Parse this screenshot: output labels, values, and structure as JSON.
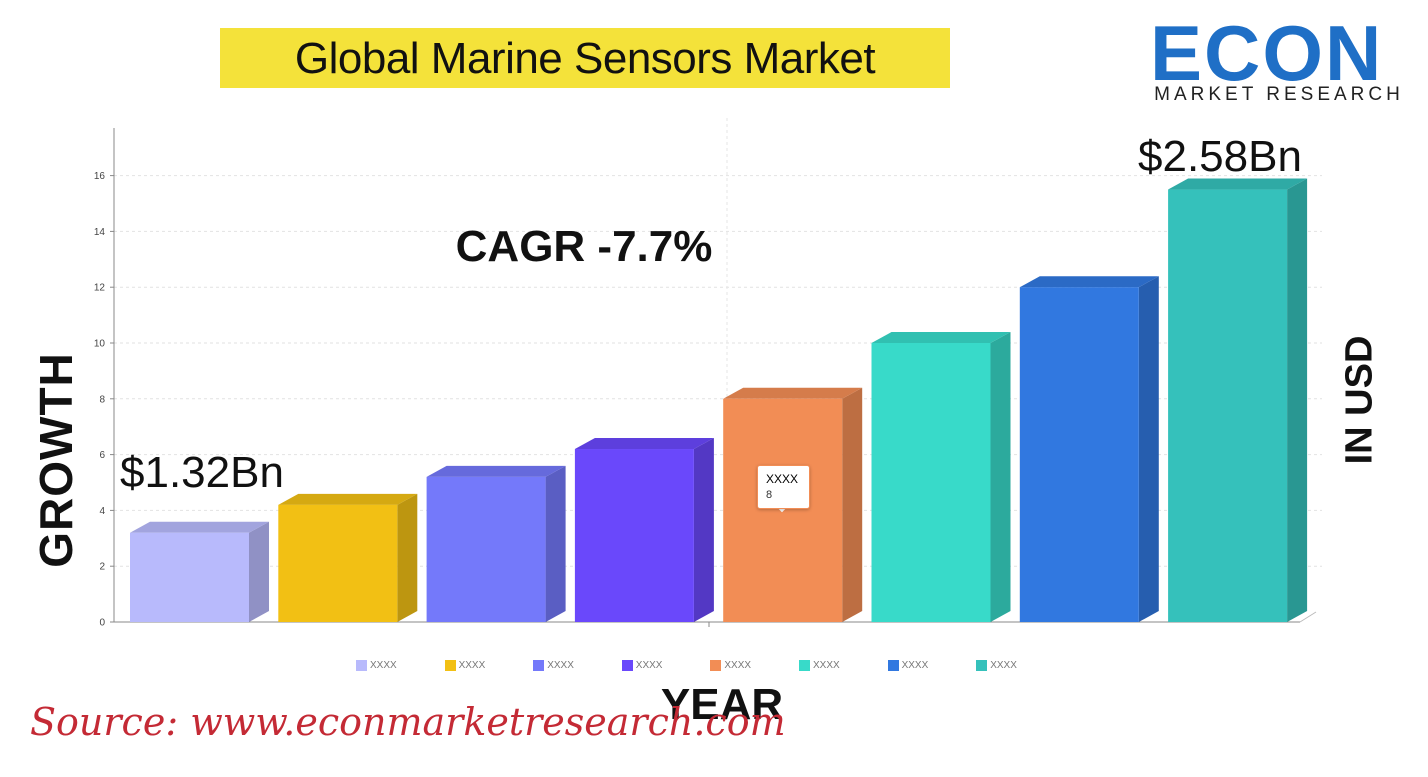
{
  "header": {
    "title": "Global Marine Sensors Market"
  },
  "logo": {
    "word": "ECON",
    "subtitle": "MARKET RESEARCH",
    "brand_color": "#1f6fc6"
  },
  "footer": {
    "source": "Source:  www.econmarketresearch.com"
  },
  "chart_data": {
    "type": "bar",
    "ylabel": "GROWTH",
    "ylabel_right": "IN USD",
    "xlabel": "YEAR",
    "ylim": [
      0,
      17
    ],
    "yticks": [
      "0",
      "2",
      "4",
      "6",
      "8",
      "10",
      "12",
      "14",
      "16"
    ],
    "grid": true,
    "legend_position": "bottom",
    "categories": [
      "XXXX",
      "XXXX",
      "XXXX",
      "XXXX",
      "XXXX",
      "XXXX",
      "XXXX",
      "XXXX"
    ],
    "values": [
      3.2,
      4.2,
      5.2,
      6.2,
      8,
      10,
      12,
      15.5
    ],
    "colors": [
      "#b8bafc",
      "#f2c014",
      "#7479fa",
      "#6a48fb",
      "#f28d55",
      "#38dac9",
      "#3178e0",
      "#35c1bb"
    ],
    "annotations": {
      "cagr": "CAGR -7.7%",
      "start_value": "$1.32Bn",
      "end_value": "$2.58Bn"
    },
    "tooltip": {
      "name": "XXXX",
      "value": "8"
    }
  }
}
